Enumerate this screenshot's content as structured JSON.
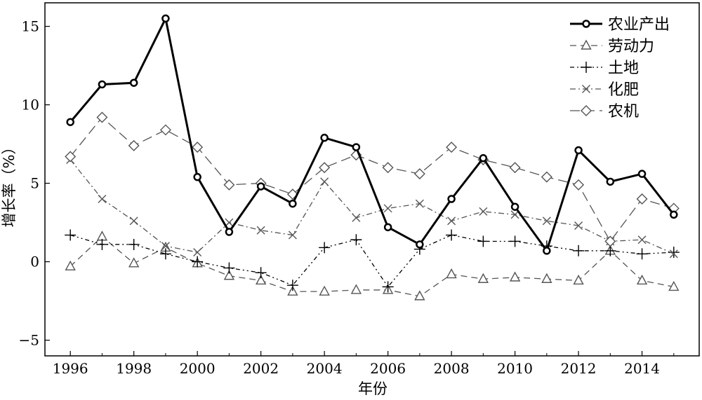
{
  "chart_data": {
    "type": "line",
    "title": "",
    "xlabel": "年份",
    "ylabel": "增长率（%）",
    "xlim": [
      1995.2,
      2015.8
    ],
    "ylim": [
      -6.0,
      16.5
    ],
    "x_ticks": [
      1996,
      1998,
      2000,
      2002,
      2004,
      2006,
      2008,
      2010,
      2012,
      2014
    ],
    "y_ticks": [
      -5,
      0,
      5,
      10,
      15
    ],
    "y_tick_labels": [
      "−5",
      "0",
      "5",
      "10",
      "15"
    ],
    "grid": false,
    "legend_position": "top-right",
    "x": [
      1996,
      1997,
      1998,
      1999,
      2000,
      2001,
      2002,
      2003,
      2004,
      2005,
      2006,
      2007,
      2008,
      2009,
      2010,
      2011,
      2012,
      2013,
      2014,
      2015
    ],
    "series": [
      {
        "name": "农业产出",
        "marker": "circle",
        "line_style": "solid",
        "color": "#000000",
        "values": [
          8.9,
          11.3,
          11.4,
          15.5,
          5.4,
          1.9,
          4.8,
          3.7,
          7.9,
          7.3,
          2.2,
          1.1,
          4.0,
          6.6,
          3.5,
          0.7,
          7.1,
          5.1,
          5.6,
          3.0
        ]
      },
      {
        "name": "劳动力",
        "marker": "triangle",
        "line_style": "dashed",
        "color": "#555555",
        "values": [
          -0.3,
          1.6,
          -0.1,
          0.9,
          -0.1,
          -0.9,
          -1.2,
          -1.9,
          -1.9,
          -1.8,
          -1.8,
          -2.2,
          -0.8,
          -1.1,
          -1.0,
          -1.1,
          -1.2,
          0.7,
          -1.2,
          -1.6
        ]
      },
      {
        "name": "土地",
        "marker": "plus",
        "line_style": "dash-dot-dot",
        "color": "#000000",
        "values": [
          1.7,
          1.1,
          1.1,
          0.5,
          0.0,
          -0.4,
          -0.7,
          -1.5,
          0.9,
          1.4,
          -1.6,
          0.8,
          1.7,
          1.3,
          1.3,
          1.0,
          0.7,
          0.7,
          0.5,
          0.6
        ]
      },
      {
        "name": "化肥",
        "marker": "x",
        "line_style": "dash-dot",
        "color": "#555555",
        "values": [
          6.5,
          4.0,
          2.6,
          1.0,
          0.6,
          2.5,
          2.0,
          1.7,
          5.1,
          2.8,
          3.4,
          3.7,
          2.6,
          3.2,
          3.0,
          2.6,
          2.3,
          1.3,
          1.4,
          0.5
        ]
      },
      {
        "name": "农机",
        "marker": "diamond",
        "line_style": "long-dash",
        "color": "#555555",
        "values": [
          6.7,
          9.2,
          7.4,
          8.4,
          7.3,
          4.9,
          5.0,
          4.3,
          6.0,
          6.8,
          6.0,
          5.6,
          7.3,
          6.5,
          6.0,
          5.4,
          4.9,
          1.3,
          4.0,
          3.4
        ]
      }
    ]
  }
}
